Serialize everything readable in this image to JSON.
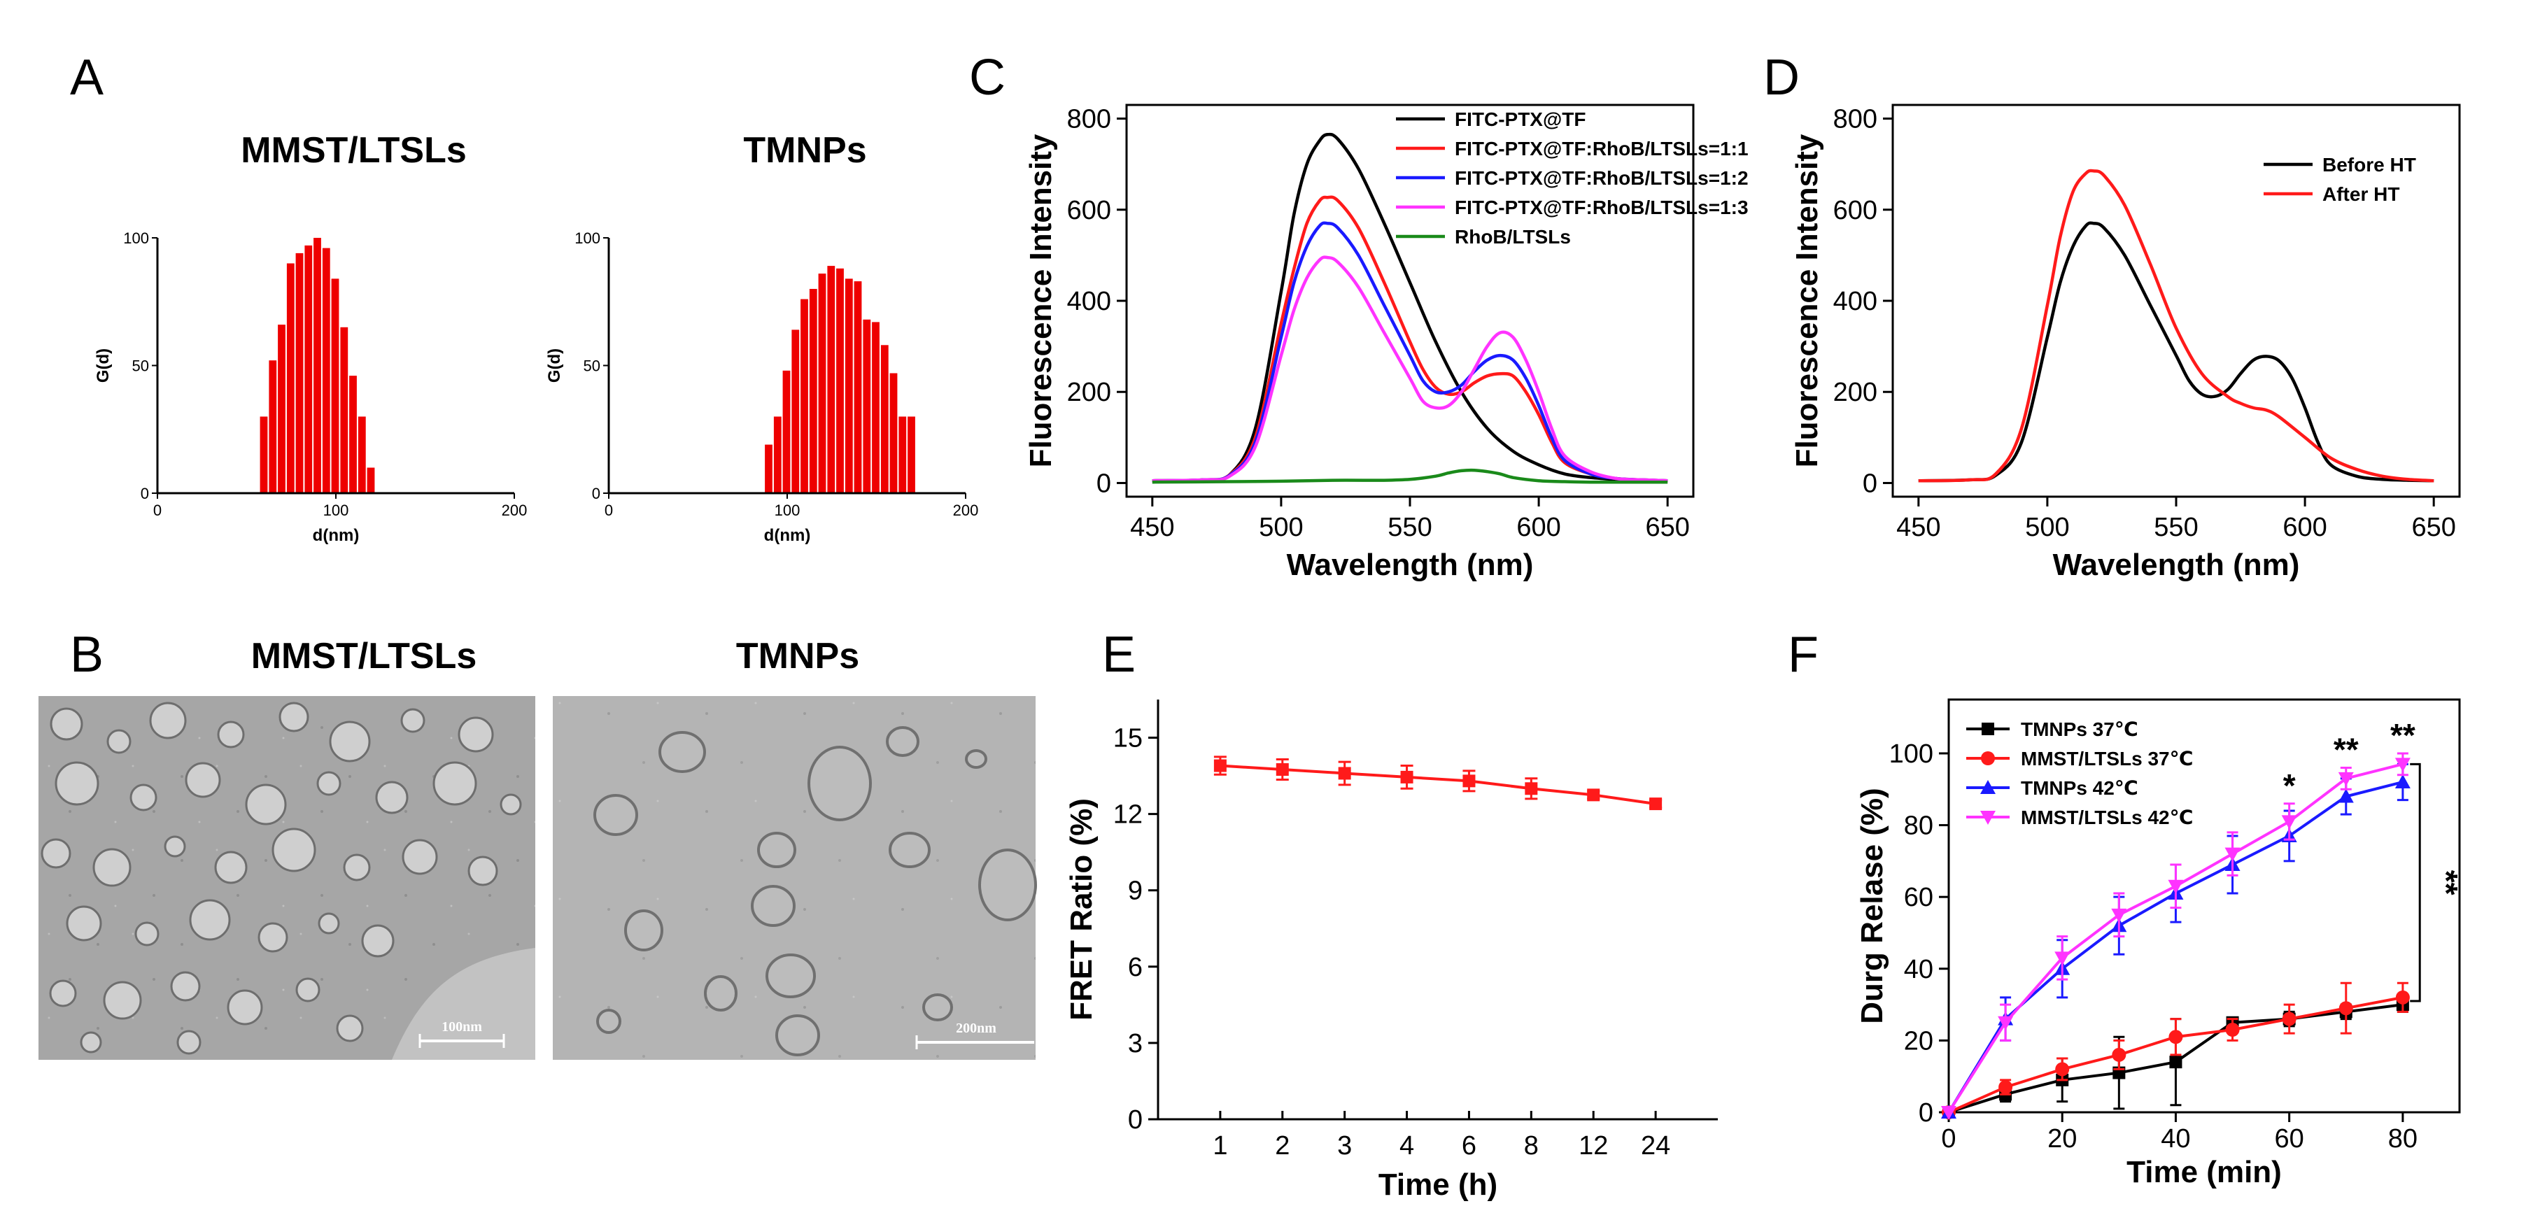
{
  "panel_labels": [
    "A",
    "B",
    "C",
    "D",
    "E",
    "F"
  ],
  "panel_b": {
    "images": [
      {
        "title": "MMST/LTSLs",
        "scale_bar": "100nm"
      },
      {
        "title": "TMNPs",
        "scale_bar": "200nm"
      }
    ]
  },
  "colors": {
    "black": "#000000",
    "red": "#ff1a1a",
    "blue": "#1a1aff",
    "magenta": "#ff33ff",
    "green": "#1a8a1a",
    "bar": "#ee0000",
    "tem": "#a9a9a9"
  },
  "chart_data": [
    {
      "id": "A1",
      "type": "bar",
      "title": "MMST/LTSLs",
      "xlabel": "d(nm)",
      "ylabel": "G(d)",
      "xlim": [
        0,
        200
      ],
      "ylim": [
        0,
        100
      ],
      "xticks": [
        "0",
        "100",
        "200"
      ],
      "yticks": [
        "0",
        "50",
        "100"
      ],
      "x": [
        60,
        65,
        70,
        75,
        80,
        85,
        90,
        95,
        100,
        105,
        110,
        115,
        120
      ],
      "values": [
        30,
        52,
        66,
        90,
        94,
        97,
        100,
        96,
        84,
        65,
        46,
        30,
        10
      ]
    },
    {
      "id": "A2",
      "type": "bar",
      "title": "TMNPs",
      "xlabel": "d(nm)",
      "ylabel": "G(d)",
      "xlim": [
        0,
        200
      ],
      "ylim": [
        0,
        100
      ],
      "xticks": [
        "0",
        "100",
        "200"
      ],
      "yticks": [
        "0",
        "50",
        "100"
      ],
      "x": [
        90,
        95,
        100,
        105,
        110,
        115,
        120,
        125,
        130,
        135,
        140,
        145,
        150,
        155,
        160,
        165,
        170
      ],
      "values": [
        19,
        30,
        48,
        64,
        76,
        80,
        86,
        89,
        88,
        84,
        83,
        68,
        67,
        58,
        47,
        30,
        30
      ]
    },
    {
      "id": "C",
      "type": "line",
      "xlabel": "Wavelength (nm)",
      "ylabel": "Fluorescence Intensity",
      "xlim": [
        440,
        660
      ],
      "ylim": [
        -30,
        830
      ],
      "xticks": [
        "450",
        "500",
        "550",
        "600",
        "650"
      ],
      "yticks": [
        "0",
        "200",
        "400",
        "600",
        "800"
      ],
      "series": [
        {
          "name": "FITC-PTX@TF",
          "color": "#000000",
          "x": [
            450,
            470,
            480,
            490,
            500,
            505,
            510,
            515,
            518,
            522,
            530,
            540,
            550,
            560,
            570,
            580,
            590,
            600,
            610,
            620,
            630,
            640,
            650
          ],
          "y": [
            5,
            7,
            18,
            120,
            420,
            590,
            700,
            752,
            765,
            755,
            690,
            570,
            440,
            310,
            200,
            120,
            70,
            40,
            20,
            12,
            8,
            6,
            5
          ]
        },
        {
          "name": "FITC-PTX@TF:RhoB/LTSLs=1:1",
          "color": "#ff1a1a",
          "x": [
            450,
            470,
            480,
            490,
            500,
            505,
            510,
            515,
            518,
            522,
            530,
            540,
            550,
            555,
            560,
            565,
            570,
            575,
            580,
            585,
            590,
            595,
            600,
            605,
            610,
            620,
            630,
            640,
            650
          ],
          "y": [
            5,
            7,
            18,
            100,
            350,
            470,
            570,
            620,
            627,
            620,
            560,
            440,
            310,
            250,
            210,
            195,
            200,
            220,
            235,
            240,
            235,
            200,
            150,
            90,
            45,
            20,
            10,
            7,
            5
          ]
        },
        {
          "name": "FITC-PTX@TF:RhoB/LTSLs=1:2",
          "color": "#1a1aff",
          "x": [
            450,
            470,
            480,
            490,
            500,
            505,
            510,
            515,
            518,
            522,
            530,
            540,
            550,
            555,
            560,
            565,
            570,
            575,
            580,
            585,
            590,
            595,
            600,
            605,
            610,
            620,
            630,
            640,
            650
          ],
          "y": [
            5,
            7,
            17,
            90,
            320,
            440,
            520,
            565,
            570,
            560,
            500,
            390,
            280,
            225,
            200,
            200,
            215,
            245,
            270,
            280,
            270,
            230,
            170,
            100,
            50,
            20,
            10,
            7,
            5
          ]
        },
        {
          "name": "FITC-PTX@TF:RhoB/LTSLs=1:3",
          "color": "#ff33ff",
          "x": [
            450,
            470,
            480,
            490,
            500,
            505,
            510,
            515,
            518,
            522,
            530,
            540,
            550,
            555,
            560,
            565,
            570,
            575,
            580,
            585,
            590,
            595,
            600,
            605,
            610,
            620,
            630,
            640,
            650
          ],
          "y": [
            5,
            7,
            15,
            80,
            280,
            380,
            450,
            490,
            495,
            485,
            430,
            330,
            230,
            180,
            165,
            170,
            200,
            250,
            300,
            330,
            320,
            270,
            200,
            120,
            60,
            25,
            10,
            7,
            5
          ]
        },
        {
          "name": "RhoB/LTSLs",
          "color": "#1a8a1a",
          "x": [
            450,
            480,
            500,
            520,
            540,
            550,
            560,
            565,
            570,
            575,
            580,
            585,
            590,
            600,
            610,
            620,
            650
          ],
          "y": [
            2,
            3,
            4,
            6,
            6,
            8,
            15,
            22,
            27,
            28,
            25,
            20,
            12,
            5,
            3,
            2,
            2
          ]
        }
      ],
      "legend_position": "top-right"
    },
    {
      "id": "D",
      "type": "line",
      "xlabel": "Wavelength (nm)",
      "ylabel": "Fluorescence Intensity",
      "xlim": [
        440,
        660
      ],
      "ylim": [
        -30,
        830
      ],
      "xticks": [
        "450",
        "500",
        "550",
        "600",
        "650"
      ],
      "yticks": [
        "0",
        "200",
        "400",
        "600",
        "800"
      ],
      "series": [
        {
          "name": "Before HT",
          "color": "#000000",
          "x": [
            450,
            470,
            480,
            490,
            500,
            505,
            510,
            515,
            518,
            522,
            530,
            540,
            550,
            555,
            560,
            565,
            570,
            575,
            580,
            585,
            590,
            595,
            600,
            605,
            610,
            620,
            630,
            640,
            650
          ],
          "y": [
            5,
            7,
            17,
            90,
            320,
            440,
            520,
            565,
            570,
            560,
            500,
            390,
            280,
            225,
            195,
            190,
            205,
            240,
            270,
            278,
            268,
            230,
            165,
            90,
            40,
            15,
            8,
            6,
            5
          ]
        },
        {
          "name": "After HT",
          "color": "#ff1a1a",
          "x": [
            450,
            470,
            480,
            490,
            500,
            505,
            510,
            515,
            518,
            522,
            530,
            540,
            550,
            560,
            570,
            575,
            580,
            585,
            590,
            600,
            610,
            620,
            630,
            640,
            650
          ],
          "y": [
            5,
            7,
            20,
            120,
            390,
            540,
            640,
            680,
            685,
            675,
            610,
            480,
            340,
            240,
            190,
            175,
            165,
            160,
            145,
            100,
            55,
            30,
            15,
            8,
            5
          ]
        }
      ],
      "legend_position": "top-right"
    },
    {
      "id": "E",
      "type": "line",
      "xlabel": "Time (h)",
      "ylabel": "FRET Ratio (%)",
      "categories": [
        "1",
        "2",
        "3",
        "4",
        "6",
        "8",
        "12",
        "24"
      ],
      "ylim": [
        0,
        16.5
      ],
      "yticks": [
        "0",
        "3",
        "6",
        "9",
        "12",
        "15"
      ],
      "series": [
        {
          "name": "FRET Ratio",
          "color": "#ff1a1a",
          "values": [
            13.9,
            13.75,
            13.6,
            13.45,
            13.3,
            13.0,
            12.75,
            12.4
          ],
          "errors": [
            0.35,
            0.4,
            0.45,
            0.45,
            0.4,
            0.4,
            0.15,
            0.15
          ]
        }
      ]
    },
    {
      "id": "F",
      "type": "line",
      "xlabel": "Time (min)",
      "ylabel": "Durg Relase (%)",
      "xlim": [
        0,
        90
      ],
      "ylim": [
        0,
        115
      ],
      "xticks": [
        "0",
        "20",
        "40",
        "60",
        "80"
      ],
      "yticks": [
        "0",
        "20",
        "40",
        "60",
        "80",
        "100"
      ],
      "series": [
        {
          "name": "TMNPs 37℃",
          "color": "#000000",
          "marker": "square",
          "x": [
            0,
            10,
            20,
            30,
            40,
            50,
            60,
            70,
            80
          ],
          "y": [
            0,
            5,
            9,
            11,
            14,
            25,
            26,
            28,
            30
          ],
          "errors": [
            0,
            2,
            6,
            10,
            12,
            1,
            2,
            2,
            2
          ]
        },
        {
          "name": "MMST/LTSLs 37℃",
          "color": "#ff1a1a",
          "marker": "circle",
          "x": [
            0,
            10,
            20,
            30,
            40,
            50,
            60,
            70,
            80
          ],
          "y": [
            0,
            7,
            12,
            16,
            21,
            23,
            26,
            29,
            32
          ],
          "errors": [
            0,
            2,
            3,
            4,
            5,
            3,
            4,
            7,
            4
          ]
        },
        {
          "name": "TMNPs 42℃",
          "color": "#1a1aff",
          "marker": "triangle-up",
          "x": [
            0,
            10,
            20,
            30,
            40,
            50,
            60,
            70,
            80
          ],
          "y": [
            0,
            26,
            40,
            52,
            61,
            69,
            77,
            88,
            92
          ],
          "errors": [
            0,
            6,
            8,
            8,
            8,
            8,
            7,
            5,
            5
          ]
        },
        {
          "name": "MMST/LTSLs 42℃",
          "color": "#ff33ff",
          "marker": "triangle-down",
          "x": [
            0,
            10,
            20,
            30,
            40,
            50,
            60,
            70,
            80
          ],
          "y": [
            0,
            25,
            43,
            55,
            63,
            72,
            81,
            93,
            97
          ],
          "errors": [
            0,
            5,
            6,
            6,
            6,
            6,
            5,
            3,
            3
          ]
        }
      ],
      "annotations": [
        {
          "text": "*",
          "x": 60
        },
        {
          "text": "**",
          "x": 70
        },
        {
          "text": "**",
          "x": 80
        },
        {
          "text": "**",
          "bracket": "37℃ vs 42℃ at 80 min"
        }
      ],
      "legend_position": "top-left"
    }
  ]
}
